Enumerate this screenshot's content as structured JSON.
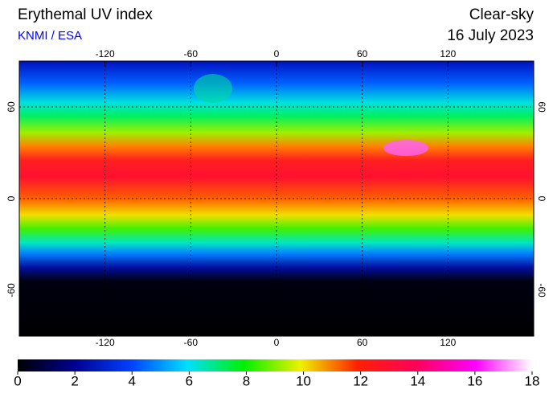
{
  "header": {
    "title": "Erythemal UV index",
    "source": "KNMI / ESA",
    "condition": "Clear-sky",
    "date": "16 July 2023"
  },
  "map": {
    "lon_range": [
      -180,
      180
    ],
    "lat_range": [
      -90,
      90
    ],
    "lon_ticks": [
      -120,
      -60,
      0,
      60,
      120
    ],
    "lat_ticks": [
      60,
      0,
      -60
    ]
  },
  "colorbar": {
    "range": [
      0,
      18
    ],
    "ticks": [
      0,
      2,
      4,
      6,
      8,
      10,
      12,
      14,
      16,
      18
    ]
  }
}
